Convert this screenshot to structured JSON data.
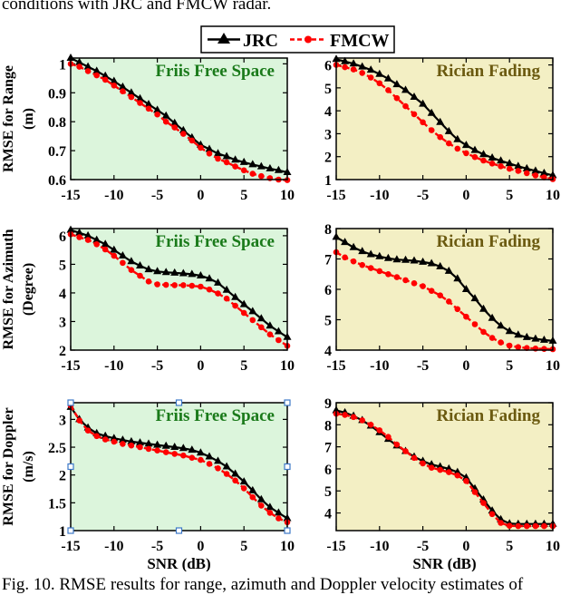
{
  "caption_top": "conditions with JRC and FMCW radar.",
  "caption_bottom": "Fig. 10.   RMSE results for range, azimuth and Doppler velocity estimates of",
  "legend": {
    "jrc": "JRC",
    "fmcw": "FMCW"
  },
  "colors": {
    "jrc": "#000000",
    "fmcw": "#ff0000",
    "free_space_bg": "#dcf5dc",
    "fading_bg": "#f3efc4",
    "free_space_title": "#1a7a1a",
    "fading_title": "#6b5a10",
    "selection_handle": "#3c78c8"
  },
  "chart_data": [
    {
      "type": "line",
      "title": "Friis Free Space",
      "ylabel": "RMSE for Range (m)",
      "xlabel": "",
      "xlim": [
        -15,
        10
      ],
      "ylim": [
        0.6,
        1.02
      ],
      "xticks": [
        "-15",
        "-10",
        "-5",
        "0",
        "5",
        "10"
      ],
      "yticks": [
        {
          "v": 0.6,
          "label": "0.6"
        },
        {
          "v": 0.7,
          "label": "0.7"
        },
        {
          "v": 0.8,
          "label": "0.8"
        },
        {
          "v": 0.9,
          "label": "0.9"
        },
        {
          "v": 1.0,
          "label": "1"
        }
      ],
      "x": [
        -15,
        -14,
        -13,
        -12,
        -11,
        -10,
        -9,
        -8,
        -7,
        -6,
        -5,
        -4,
        -3,
        -2,
        -1,
        0,
        1,
        2,
        3,
        4,
        5,
        6,
        7,
        8,
        9,
        10
      ],
      "series": [
        {
          "name": "JRC",
          "values": [
            1.02,
            1.005,
            0.99,
            0.975,
            0.958,
            0.94,
            0.92,
            0.9,
            0.88,
            0.86,
            0.84,
            0.82,
            0.795,
            0.77,
            0.745,
            0.72,
            0.705,
            0.69,
            0.68,
            0.668,
            0.66,
            0.652,
            0.645,
            0.638,
            0.632,
            0.625
          ]
        },
        {
          "name": "FMCW",
          "values": [
            1.0,
            0.99,
            0.975,
            0.96,
            0.945,
            0.925,
            0.905,
            0.885,
            0.865,
            0.845,
            0.825,
            0.8,
            0.78,
            0.758,
            0.735,
            0.71,
            0.69,
            0.672,
            0.66,
            0.645,
            0.632,
            0.62,
            0.612,
            0.605,
            0.6,
            0.598
          ]
        }
      ]
    },
    {
      "type": "line",
      "title": "Rician Fading",
      "ylabel": "",
      "xlabel": "",
      "xlim": [
        -15,
        10
      ],
      "ylim": [
        1,
        6.3
      ],
      "xticks": [
        "-15",
        "-10",
        "-5",
        "0",
        "5",
        "10"
      ],
      "yticks": [
        {
          "v": 1,
          "label": "1"
        },
        {
          "v": 2,
          "label": "2"
        },
        {
          "v": 3,
          "label": "3"
        },
        {
          "v": 4,
          "label": "4"
        },
        {
          "v": 5,
          "label": "5"
        },
        {
          "v": 6,
          "label": "6"
        }
      ],
      "x": [
        -15,
        -14,
        -13,
        -12,
        -11,
        -10,
        -9,
        -8,
        -7,
        -6,
        -5,
        -4,
        -3,
        -2,
        -1,
        0,
        1,
        2,
        3,
        4,
        5,
        6,
        7,
        8,
        9,
        10
      ],
      "series": [
        {
          "name": "JRC",
          "values": [
            6.25,
            6.15,
            6.05,
            5.92,
            5.78,
            5.6,
            5.4,
            5.15,
            4.9,
            4.6,
            4.3,
            3.9,
            3.5,
            3.1,
            2.75,
            2.5,
            2.28,
            2.1,
            1.95,
            1.82,
            1.7,
            1.58,
            1.48,
            1.38,
            1.28,
            1.18
          ]
        },
        {
          "name": "FMCW",
          "values": [
            6.0,
            5.9,
            5.8,
            5.65,
            5.45,
            5.2,
            4.9,
            4.55,
            4.2,
            3.85,
            3.5,
            3.15,
            2.85,
            2.58,
            2.35,
            2.15,
            1.98,
            1.83,
            1.7,
            1.58,
            1.47,
            1.38,
            1.28,
            1.18,
            1.1,
            1.02
          ]
        }
      ]
    },
    {
      "type": "line",
      "title": "Friis Free Space",
      "ylabel": "RMSE for Azimuth (Degree)",
      "xlabel": "",
      "xlim": [
        -15,
        10
      ],
      "ylim": [
        2,
        6.25
      ],
      "xticks": [
        "-15",
        "-10",
        "-5",
        "0",
        "5",
        "10"
      ],
      "yticks": [
        {
          "v": 2,
          "label": "2"
        },
        {
          "v": 3,
          "label": "3"
        },
        {
          "v": 4,
          "label": "4"
        },
        {
          "v": 5,
          "label": "5"
        },
        {
          "v": 6,
          "label": "6"
        }
      ],
      "x": [
        -15,
        -14,
        -13,
        -12,
        -11,
        -10,
        -9,
        -8,
        -7,
        -6,
        -5,
        -4,
        -3,
        -2,
        -1,
        0,
        1,
        2,
        3,
        4,
        5,
        6,
        7,
        8,
        9,
        10
      ],
      "series": [
        {
          "name": "JRC",
          "values": [
            6.2,
            6.1,
            6.0,
            5.85,
            5.7,
            5.5,
            5.3,
            5.1,
            4.95,
            4.82,
            4.75,
            4.72,
            4.7,
            4.68,
            4.65,
            4.6,
            4.5,
            4.35,
            4.1,
            3.85,
            3.6,
            3.35,
            3.1,
            2.85,
            2.65,
            2.45
          ]
        },
        {
          "name": "FMCW",
          "values": [
            6.05,
            5.95,
            5.85,
            5.7,
            5.52,
            5.3,
            5.05,
            4.8,
            4.6,
            4.4,
            4.3,
            4.28,
            4.27,
            4.27,
            4.25,
            4.22,
            4.12,
            3.98,
            3.8,
            3.55,
            3.3,
            3.05,
            2.8,
            2.55,
            2.35,
            2.15
          ]
        }
      ]
    },
    {
      "type": "line",
      "title": "Rician Fading",
      "ylabel": "",
      "xlabel": "",
      "xlim": [
        -15,
        10
      ],
      "ylim": [
        4,
        8
      ],
      "xticks": [
        "-15",
        "-10",
        "-5",
        "0",
        "5",
        "10"
      ],
      "yticks": [
        {
          "v": 4,
          "label": "4"
        },
        {
          "v": 5,
          "label": "5"
        },
        {
          "v": 6,
          "label": "6"
        },
        {
          "v": 7,
          "label": "7"
        },
        {
          "v": 8,
          "label": "8"
        }
      ],
      "x": [
        -15,
        -14,
        -13,
        -12,
        -11,
        -10,
        -9,
        -8,
        -7,
        -6,
        -5,
        -4,
        -3,
        -2,
        -1,
        0,
        1,
        2,
        3,
        4,
        5,
        6,
        7,
        8,
        9,
        10
      ],
      "series": [
        {
          "name": "JRC",
          "values": [
            7.72,
            7.55,
            7.38,
            7.25,
            7.15,
            7.08,
            7.02,
            6.98,
            6.96,
            6.94,
            6.9,
            6.85,
            6.75,
            6.6,
            6.35,
            6.0,
            5.7,
            5.35,
            5.05,
            4.8,
            4.62,
            4.5,
            4.42,
            4.37,
            4.33,
            4.3
          ]
        },
        {
          "name": "FMCW",
          "values": [
            7.22,
            7.05,
            6.92,
            6.8,
            6.7,
            6.6,
            6.5,
            6.4,
            6.3,
            6.2,
            6.1,
            5.95,
            5.8,
            5.6,
            5.35,
            5.1,
            4.85,
            4.6,
            4.4,
            4.25,
            4.15,
            4.1,
            4.07,
            4.05,
            4.04,
            4.03
          ]
        }
      ]
    },
    {
      "type": "line",
      "title": "Friis Free Space",
      "ylabel": "RMSE for Doppler (m/s)",
      "xlabel": "SNR (dB)",
      "xlim": [
        -15,
        10
      ],
      "ylim": [
        1,
        3.3
      ],
      "xticks": [
        "-15",
        "-10",
        "-5",
        "0",
        "5",
        "10"
      ],
      "yticks": [
        {
          "v": 1,
          "label": "1"
        },
        {
          "v": 1.5,
          "label": "1.5"
        },
        {
          "v": 2,
          "label": "2"
        },
        {
          "v": 2.5,
          "label": "2.5"
        },
        {
          "v": 3,
          "label": "3"
        }
      ],
      "x": [
        -15,
        -14,
        -13,
        -12,
        -11,
        -10,
        -9,
        -8,
        -7,
        -6,
        -5,
        -4,
        -3,
        -2,
        -1,
        0,
        1,
        2,
        3,
        4,
        5,
        6,
        7,
        8,
        9,
        10
      ],
      "series": [
        {
          "name": "JRC",
          "values": [
            3.22,
            3.0,
            2.85,
            2.75,
            2.7,
            2.66,
            2.63,
            2.6,
            2.58,
            2.56,
            2.54,
            2.52,
            2.5,
            2.48,
            2.45,
            2.4,
            2.33,
            2.25,
            2.15,
            2.02,
            1.88,
            1.72,
            1.56,
            1.42,
            1.32,
            1.22
          ]
        },
        {
          "name": "FMCW",
          "values": [
            3.25,
            2.98,
            2.8,
            2.7,
            2.64,
            2.6,
            2.56,
            2.53,
            2.5,
            2.47,
            2.44,
            2.41,
            2.38,
            2.35,
            2.31,
            2.27,
            2.2,
            2.12,
            2.02,
            1.9,
            1.76,
            1.6,
            1.45,
            1.32,
            1.22,
            1.15
          ]
        }
      ]
    },
    {
      "type": "line",
      "title": "Rician Fading",
      "ylabel": "",
      "xlabel": "SNR (dB)",
      "xlim": [
        -15,
        10
      ],
      "ylim": [
        3.2,
        9
      ],
      "xticks": [
        "-15",
        "-10",
        "-5",
        "0",
        "5",
        "10"
      ],
      "yticks": [
        {
          "v": 4,
          "label": "4"
        },
        {
          "v": 5,
          "label": "5"
        },
        {
          "v": 6,
          "label": "6"
        },
        {
          "v": 7,
          "label": "7"
        },
        {
          "v": 8,
          "label": "8"
        },
        {
          "v": 9,
          "label": "9"
        }
      ],
      "x": [
        -15,
        -14,
        -13,
        -12,
        -11,
        -10,
        -9,
        -8,
        -7,
        -6,
        -5,
        -4,
        -3,
        -2,
        -1,
        0,
        1,
        2,
        3,
        4,
        5,
        6,
        7,
        8,
        9,
        10
      ],
      "series": [
        {
          "name": "JRC",
          "values": [
            8.65,
            8.55,
            8.4,
            8.2,
            7.95,
            7.65,
            7.35,
            7.05,
            6.8,
            6.55,
            6.35,
            6.2,
            6.1,
            6.0,
            5.85,
            5.6,
            5.1,
            4.6,
            4.1,
            3.7,
            3.52,
            3.5,
            3.5,
            3.5,
            3.5,
            3.5
          ]
        },
        {
          "name": "FMCW",
          "values": [
            8.5,
            8.45,
            8.35,
            8.2,
            8.0,
            7.75,
            7.45,
            7.1,
            6.8,
            6.5,
            6.25,
            6.05,
            5.95,
            5.85,
            5.7,
            5.45,
            4.95,
            4.45,
            3.95,
            3.55,
            3.42,
            3.4,
            3.4,
            3.4,
            3.4,
            3.4
          ]
        }
      ]
    }
  ]
}
